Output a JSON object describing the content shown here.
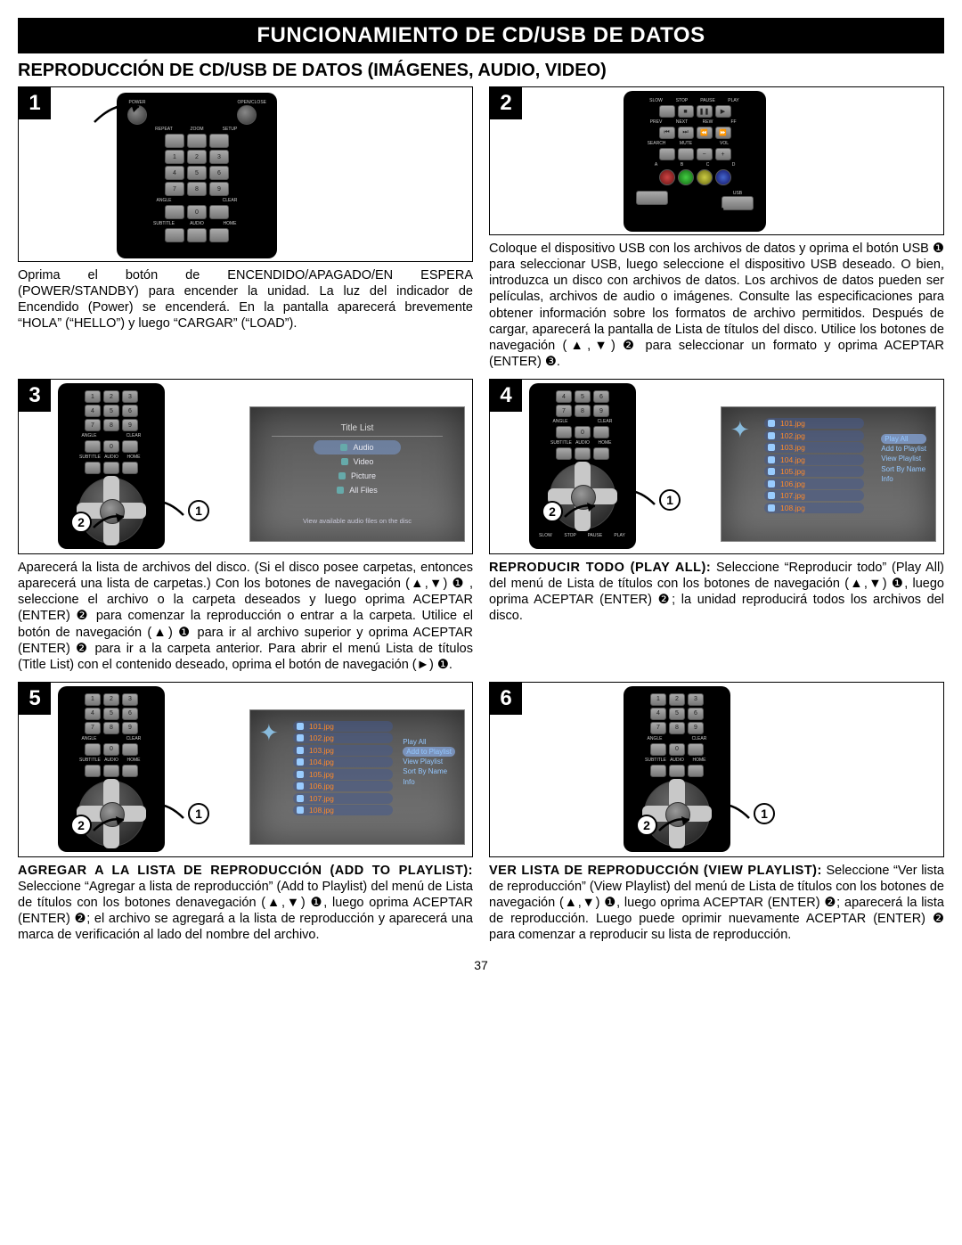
{
  "page_number": "37",
  "title": "FUNCIONAMIENTO DE CD/USB DE DATOS",
  "subtitle": "REPRODUCCIÓN DE CD/USB DE DATOS (IMÁGENES, AUDIO, VIDEO)",
  "main_bg": "#ffffff",
  "title_bg": "#000000",
  "remote_labels": {
    "power": "POWER",
    "open_close": "OPEN/CLOSE",
    "repeat": "REPEAT",
    "zoom": "ZOOM",
    "setup": "SETUP",
    "angle": "ANGLE",
    "clear": "CLEAR",
    "subtitle": "SUBTITLE",
    "audio": "AUDIO",
    "home": "HOME",
    "slow": "SLOW",
    "stop": "STOP",
    "pause": "PAUSE",
    "play": "PLAY",
    "prev": "PREV",
    "next": "NEXT",
    "rew": "REW",
    "ff": "FF",
    "search": "SEARCH",
    "mute": "MUTE",
    "vol": "VOL",
    "a": "A",
    "b": "B",
    "c": "C",
    "d": "D",
    "usb": "USB",
    "popup": "POP-UP MENU",
    "ret": "RETURN",
    "top": "TOP MENU",
    "disp": "DISPLAY"
  },
  "steps": [
    {
      "num": "1",
      "caption_html": "Oprima el botón de ENCENDIDO/APAGADO/EN ESPERA (POWER/STANDBY) para encender la unidad. La luz del indicador de Encendido (Power) se encenderá. En la pantalla aparecerá brevemente “HOLA” (“HELLO”) y luego “CARGAR” (“LOAD”)."
    },
    {
      "num": "2",
      "caption_html": "Coloque el dispositivo USB con los archivos de datos y oprima el botón USB ❶ para seleccionar USB, luego seleccione el dispositivo USB deseado. O bien, introduzca un disco con archivos de datos. Los archivos de datos pueden ser películas, archivos de audio o imágenes. Consulte las especificaciones para obtener información sobre los formatos de archivo permitidos. Después de cargar, aparecerá la pantalla de Lista de títulos del disco. Utilice los botones de navegación (▲,▼) ❷ para seleccionar un formato y oprima ACEPTAR (ENTER)  ❸."
    },
    {
      "num": "3",
      "screen_title_list": {
        "header": "Title List",
        "items": [
          "Audio",
          "Video",
          "Picture",
          "All Files"
        ],
        "selected_index": 0,
        "footer": "View available audio files on the disc"
      },
      "caption_html": "Aparecerá la lista de archivos del disco. (Si el disco posee carpetas, entonces aparecerá una lista de carpetas.) Con los botones de navegación (▲,▼) ❶ , seleccione el archivo o la carpeta deseados y luego oprima ACEPTAR (ENTER) ❷ para comenzar la reproducción o entrar a la carpeta. Utilice el botón de navegación (▲) ❶ para ir al archivo superior y oprima ACEPTAR (ENTER) ❷ para ir a la carpeta anterior. Para abrir el menú Lista de títulos (Title List) con el contenido deseado, oprima el botón de navegación (►) ❶."
    },
    {
      "num": "4",
      "screen_filelist": {
        "files": [
          "101.jpg",
          "102.jpg",
          "103.jpg",
          "104.jpg",
          "105.jpg",
          "106.jpg",
          "107.jpg",
          "108.jpg"
        ],
        "side": [
          "Play All",
          "Add to Playlist",
          "View Playlist",
          "Sort By Name",
          "Info"
        ],
        "selected_side": 0
      },
      "caption_html": "<b>REPRODUCIR TODO (PLAY ALL):</b> Seleccione “Reproducir todo” (Play All) del menú de Lista de títulos con los botones de navegación (▲,▼) ❶, luego oprima ACEPTAR (ENTER) ❷; la unidad reproducirá todos los archivos del disco."
    },
    {
      "num": "5",
      "screen_filelist": {
        "files": [
          "101.jpg",
          "102.jpg",
          "103.jpg",
          "104.jpg",
          "105.jpg",
          "106.jpg",
          "107.jpg",
          "108.jpg"
        ],
        "side": [
          "Play All",
          "Add to Playlist",
          "View Playlist",
          "Sort By Name",
          "Info"
        ],
        "selected_side": 1
      },
      "caption_html": "<b>AGREGAR A LA LISTA DE REPRODUCCIÓN (ADD TO PLAYLIST):</b> Seleccione “Agregar a lista de reproducción” (Add to Playlist) del menú de Lista de títulos con los botones denavegación (▲,▼) ❶, luego oprima ACEPTAR (ENTER) ❷; el archivo se agregará a la lista de reproducción y aparecerá una marca de verificación al lado del nombre del archivo."
    },
    {
      "num": "6",
      "caption_html": "<b>VER LISTA DE REPRODUCCIÓN (VIEW PLAYLIST):</b> Seleccione “Ver lista de reproducción” (View Playlist) del menú de Lista de títulos con los botones de navegación (▲,▼) ❶, luego oprima ACEPTAR (ENTER) ❷; aparecerá la lista de reproducción. Luego puede oprimir nuevamente ACEPTAR (ENTER) ❷ para comenzar a reproducir su lista de reproducción."
    }
  ]
}
